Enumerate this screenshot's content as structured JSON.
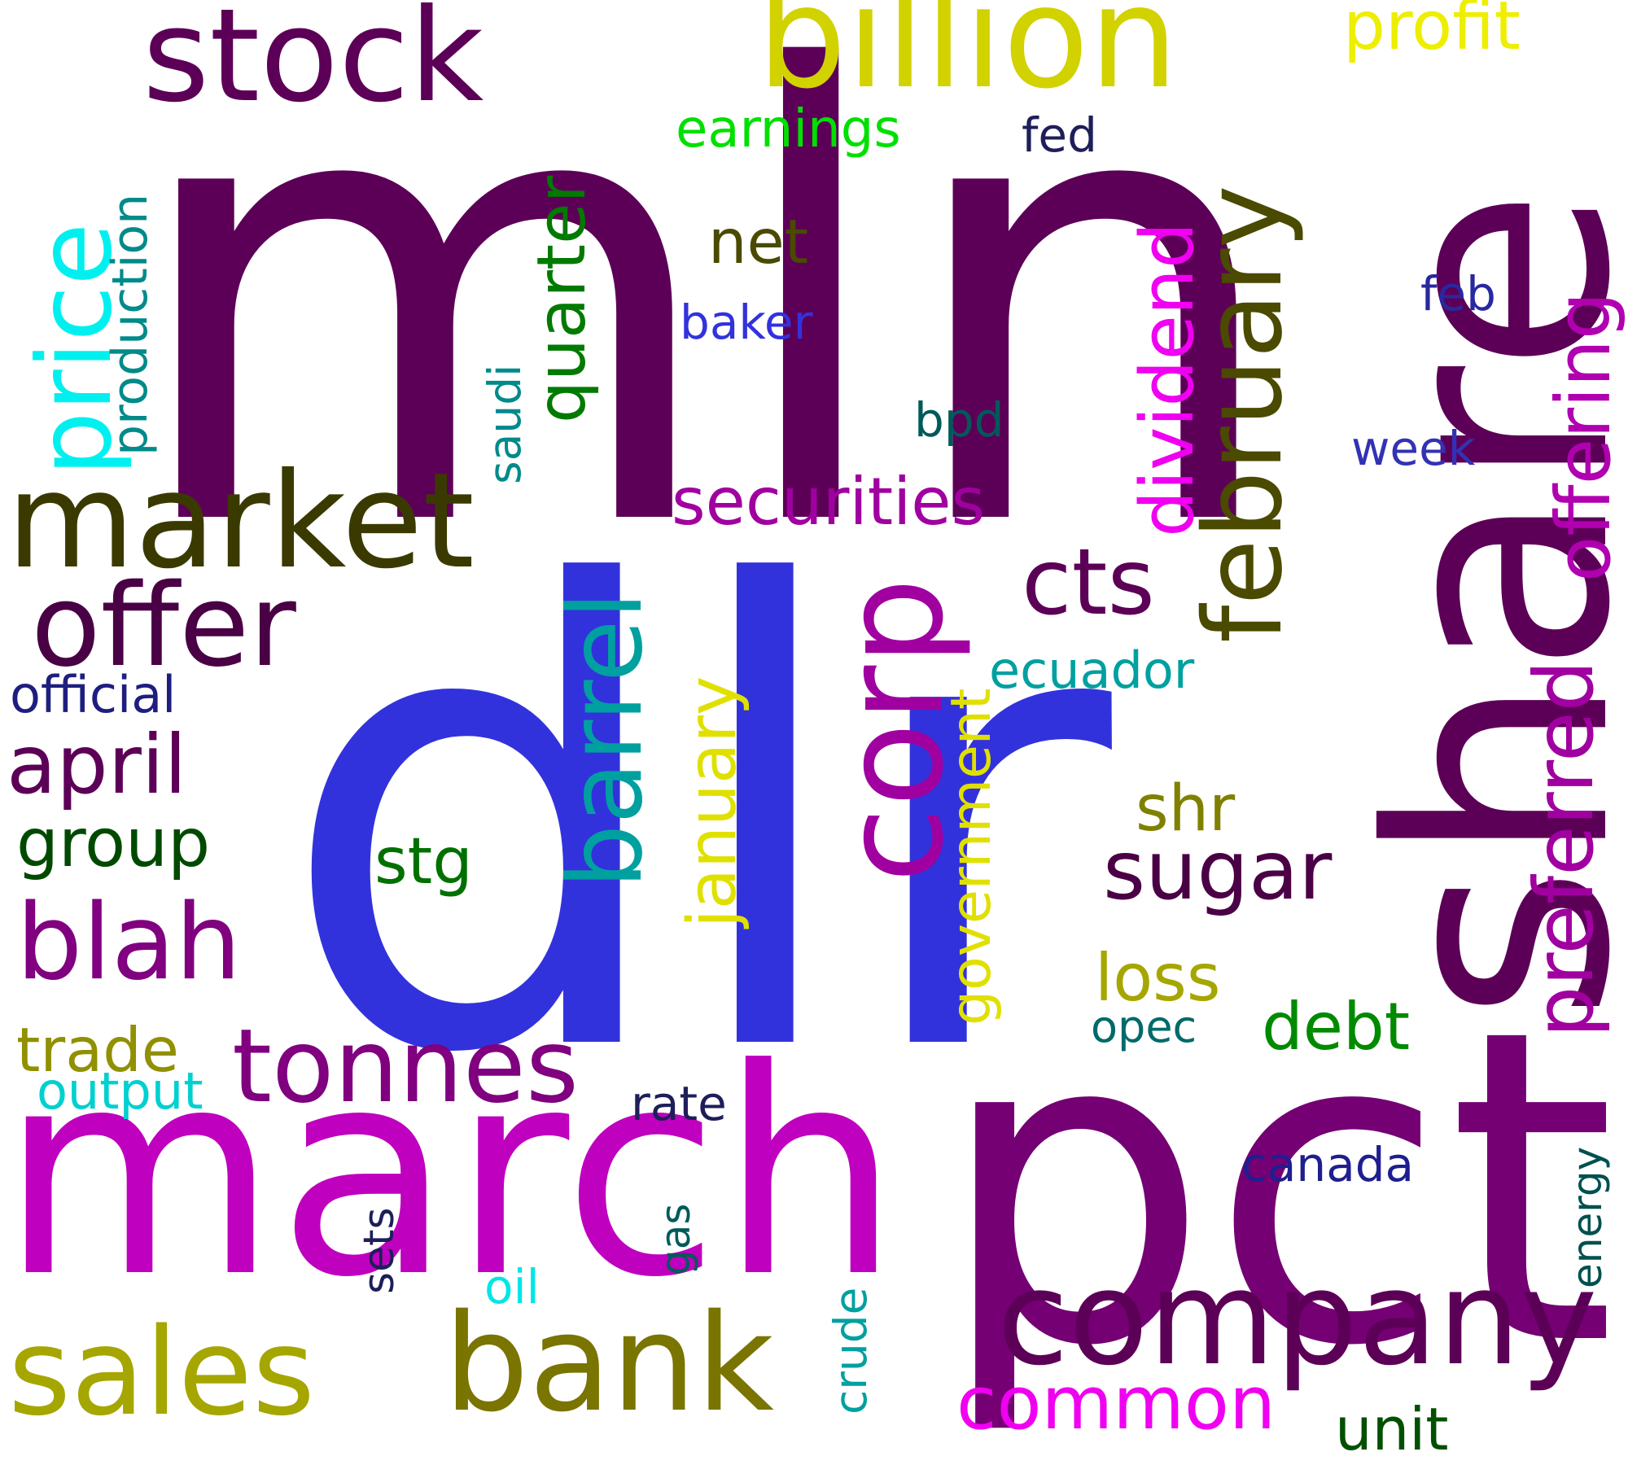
{
  "words": {
    "mln": {
      "text": "mln",
      "color": "#5c0057"
    },
    "dlr": {
      "text": "dlr",
      "color": "#3232dc"
    },
    "share": {
      "text": "share",
      "color": "#5c0057"
    },
    "pct": {
      "text": "pct",
      "color": "#740074"
    },
    "march": {
      "text": "march",
      "color": "#bf00bf"
    },
    "billion": {
      "text": "billion",
      "color": "#d2d200"
    },
    "stock": {
      "text": "stock",
      "color": "#5c0057"
    },
    "company": {
      "text": "company",
      "color": "#5c0057"
    },
    "market": {
      "text": "market",
      "color": "#3a3a00"
    },
    "corp": {
      "text": "corp",
      "color": "#a000a0"
    },
    "february": {
      "text": "february",
      "color": "#4a4a00"
    },
    "bank": {
      "text": "bank",
      "color": "#7a7400"
    },
    "sales": {
      "text": "sales",
      "color": "#a6a600"
    },
    "offer": {
      "text": "offer",
      "color": "#4a0045"
    },
    "barrel": {
      "text": "barrel",
      "color": "#00a0a0"
    },
    "tonnes": {
      "text": "tonnes",
      "color": "#800080"
    },
    "price": {
      "text": "price",
      "color": "#00f0f0"
    },
    "blah": {
      "text": "blah",
      "color": "#800080"
    },
    "preferred": {
      "text": "preferred",
      "color": "#a000a0"
    },
    "cts": {
      "text": "cts",
      "color": "#5c0057"
    },
    "dividend": {
      "text": "dividend",
      "color": "#f000f0"
    },
    "offering": {
      "text": "offering",
      "color": "#b000b0"
    },
    "april": {
      "text": "april",
      "color": "#5c0057"
    },
    "profit": {
      "text": "profit",
      "color": "#eeee00"
    },
    "quarter": {
      "text": "quarter",
      "color": "#007a00"
    },
    "securities": {
      "text": "securities",
      "color": "#a000a0"
    },
    "common": {
      "text": "common",
      "color": "#f000f0"
    },
    "sugar": {
      "text": "sugar",
      "color": "#4a0045"
    },
    "january": {
      "text": "january",
      "color": "#e0e000"
    },
    "group": {
      "text": "group",
      "color": "#004a00"
    },
    "government": {
      "text": "government",
      "color": "#e0e000"
    },
    "trade": {
      "text": "trade",
      "color": "#909000"
    },
    "net": {
      "text": "net",
      "color": "#4a4a00"
    },
    "production": {
      "text": "production",
      "color": "#008a8a"
    },
    "debt": {
      "text": "debt",
      "color": "#008a00"
    },
    "loss": {
      "text": "loss",
      "color": "#a6a600"
    },
    "stg": {
      "text": "stg",
      "color": "#007000"
    },
    "earnings": {
      "text": "earnings",
      "color": "#00e000"
    },
    "shr": {
      "text": "shr",
      "color": "#808000"
    },
    "official": {
      "text": "official",
      "color": "#1e1e80"
    },
    "ecuador": {
      "text": "ecuador",
      "color": "#00a0a0"
    },
    "output": {
      "text": "output",
      "color": "#00d0d0"
    },
    "unit": {
      "text": "unit",
      "color": "#005000"
    },
    "canada": {
      "text": "canada",
      "color": "#1e1e90"
    },
    "baker": {
      "text": "baker",
      "color": "#3232dc"
    },
    "saudi": {
      "text": "saudi",
      "color": "#008a8a"
    },
    "rate": {
      "text": "rate",
      "color": "#1e1e5a"
    },
    "crude": {
      "text": "crude",
      "color": "#00a0a0"
    },
    "bpd": {
      "text": "bpd",
      "color": "#005a5a"
    },
    "week": {
      "text": "week",
      "color": "#3232b4"
    },
    "feb": {
      "text": "feb",
      "color": "#2828a0"
    },
    "fed": {
      "text": "fed",
      "color": "#1e1e5a"
    },
    "opec": {
      "text": "opec",
      "color": "#006a6a"
    },
    "sets": {
      "text": "sets",
      "color": "#1e1e5a"
    },
    "gas": {
      "text": "gas",
      "color": "#005a5a"
    },
    "energy": {
      "text": "energy",
      "color": "#005050"
    },
    "oil": {
      "text": "oil",
      "color": "#00e6e6"
    }
  }
}
